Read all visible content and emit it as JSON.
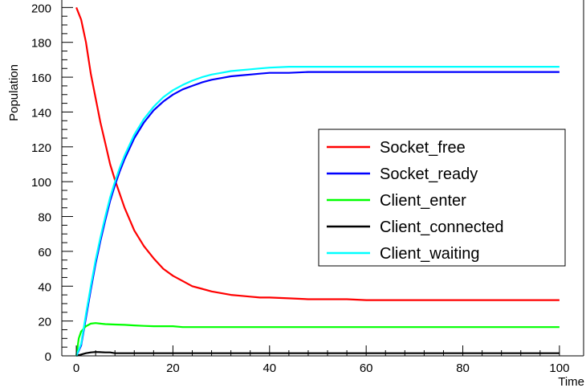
{
  "chart_data": {
    "type": "line",
    "title": "",
    "xlabel": "Time",
    "ylabel": "Population",
    "xlim": [
      -3,
      105
    ],
    "ylim": [
      0,
      208
    ],
    "grid": false,
    "legend_position": "right",
    "x_ticks": [
      0,
      20,
      40,
      60,
      80,
      100
    ],
    "y_ticks": [
      0,
      20,
      40,
      60,
      80,
      100,
      120,
      140,
      160,
      180,
      200
    ],
    "series": [
      {
        "name": "Socket_free",
        "color": "#ff0000",
        "x": [
          0,
          1,
          2,
          3,
          4,
          5,
          6,
          7,
          8,
          9,
          10,
          12,
          14,
          16,
          18,
          20,
          22,
          24,
          26,
          28,
          30,
          32,
          34,
          36,
          38,
          40,
          44,
          48,
          52,
          56,
          60,
          70,
          80,
          90,
          100
        ],
        "y": [
          200,
          193,
          180,
          162,
          148,
          134,
          122,
          110,
          101,
          93,
          85,
          72,
          63,
          56,
          50,
          46,
          43,
          40,
          38.5,
          37,
          36,
          35,
          34.5,
          34,
          33.5,
          33.5,
          33,
          32.5,
          32.5,
          32.5,
          32,
          32,
          32,
          32,
          32
        ]
      },
      {
        "name": "Socket_ready",
        "color": "#0000ff",
        "x": [
          0,
          1,
          2,
          3,
          4,
          5,
          6,
          7,
          8,
          9,
          10,
          12,
          14,
          16,
          18,
          20,
          22,
          24,
          26,
          28,
          30,
          32,
          34,
          36,
          38,
          40,
          44,
          48,
          52,
          56,
          60,
          70,
          80,
          90,
          100
        ],
        "y": [
          0,
          6,
          22,
          38,
          53,
          66,
          78,
          89,
          98,
          106,
          113,
          125,
          134,
          141,
          146,
          150,
          153,
          155,
          157,
          158.5,
          159.5,
          160.5,
          161,
          161.5,
          162,
          162.5,
          162.5,
          163,
          163,
          163,
          163,
          163,
          163,
          163,
          163
        ]
      },
      {
        "name": "Client_enter",
        "color": "#00ff00",
        "x": [
          0,
          0.5,
          1,
          2,
          3,
          4,
          5,
          6,
          8,
          10,
          12,
          14,
          16,
          18,
          20,
          22,
          30,
          40,
          60,
          80,
          100
        ],
        "y": [
          0,
          10,
          14,
          17,
          18.5,
          18.8,
          18.5,
          18.2,
          18,
          17.8,
          17.5,
          17.2,
          17,
          17,
          17,
          16.5,
          16.5,
          16.5,
          16.5,
          16.5,
          16.5
        ]
      },
      {
        "name": "Client_connected",
        "color": "#000000",
        "x": [
          0,
          1,
          2,
          3,
          4,
          5,
          6,
          7,
          8,
          10,
          20,
          40,
          60,
          80,
          100
        ],
        "y": [
          0,
          0.8,
          1.5,
          2,
          2.2,
          2.1,
          2,
          2,
          1.5,
          1.5,
          1.5,
          1.5,
          1.5,
          1.5,
          1.5
        ]
      },
      {
        "name": "Client_waiting",
        "color": "#00ffff",
        "x": [
          0,
          1,
          2,
          3,
          4,
          5,
          6,
          7,
          8,
          9,
          10,
          12,
          14,
          16,
          18,
          20,
          22,
          24,
          26,
          28,
          30,
          32,
          34,
          36,
          38,
          40,
          44,
          48,
          52,
          56,
          60,
          70,
          80,
          90,
          100
        ],
        "y": [
          0,
          7,
          24,
          40,
          55,
          68,
          80,
          91,
          100,
          108,
          115,
          127,
          136,
          143,
          148.5,
          152.5,
          155.5,
          158,
          160,
          161.5,
          162.5,
          163.5,
          164,
          164.5,
          165,
          165.5,
          166,
          166,
          166,
          166,
          166,
          166,
          166,
          166,
          166
        ]
      }
    ]
  }
}
